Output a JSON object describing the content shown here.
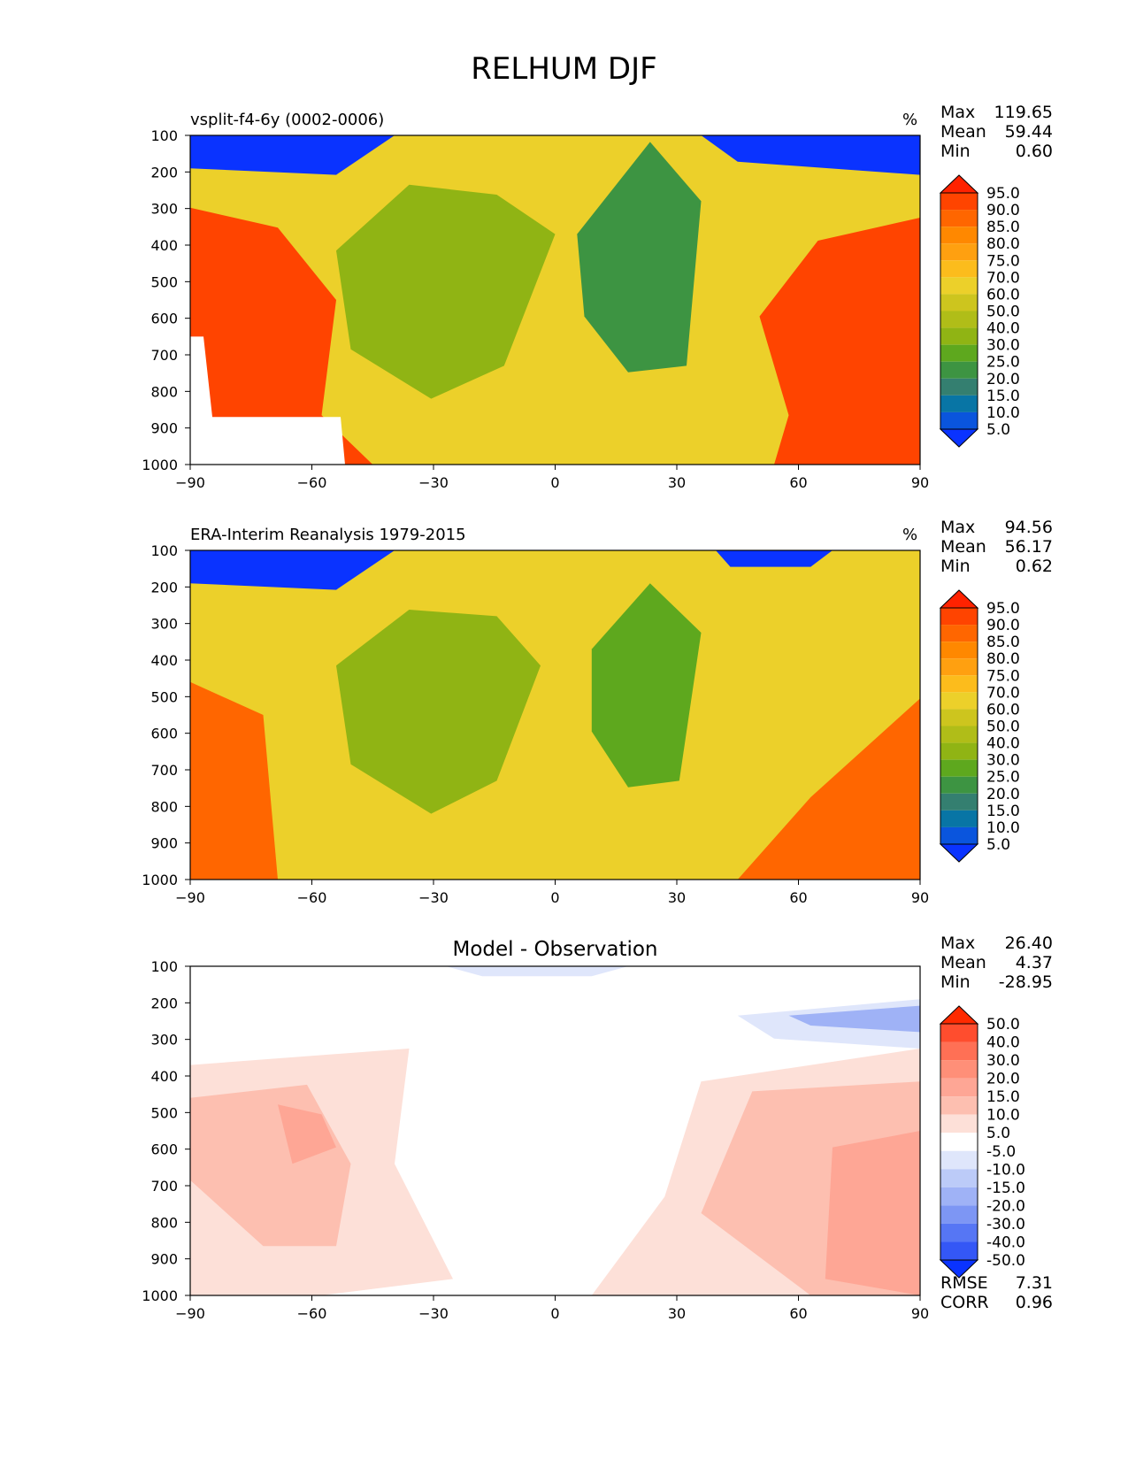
{
  "figure": {
    "title": "RELHUM DJF"
  },
  "chart_data": [
    {
      "type": "contour",
      "title": "vsplit-f4-6y (0002-0006)",
      "units": "%",
      "stats": [
        {
          "label": "Max",
          "value": "119.65"
        },
        {
          "label": "Mean",
          "value": "59.44"
        },
        {
          "label": "Min",
          "value": "0.60"
        }
      ],
      "x_ticks": [
        "−90",
        "−60",
        "−30",
        "0",
        "30",
        "60",
        "90"
      ],
      "y_ticks": [
        "100",
        "200",
        "300",
        "400",
        "500",
        "600",
        "700",
        "800",
        "900",
        "1000"
      ],
      "xlim": [
        -90,
        90
      ],
      "ylim": [
        1000,
        100
      ],
      "colorbar": {
        "labels": [
          "95.0",
          "90.0",
          "85.0",
          "80.0",
          "75.0",
          "70.0",
          "60.0",
          "50.0",
          "40.0",
          "30.0",
          "25.0",
          "20.0",
          "15.0",
          "10.0",
          "5.0"
        ],
        "colors": [
          "#ff2200",
          "#ff4400",
          "#ff6600",
          "#ff8800",
          "#ffa010",
          "#fcbc1c",
          "#ecd02a",
          "#cdc51e",
          "#b0bd18",
          "#90b414",
          "#5ea81e",
          "#3d9442",
          "#347f70",
          "#0875a5",
          "#0a55dd",
          "#0a33ff"
        ]
      },
      "fields": {
        "stratosphere_dry": {
          "value": 5,
          "color": "#0a33ff"
        },
        "tropics_upper": {
          "value": 70,
          "color": "#ecd02a"
        },
        "subtropics_south": {
          "value": 40,
          "color": "#90b414"
        },
        "subtropics_north": {
          "value": 25,
          "color": "#3d9442"
        },
        "polar_lower": {
          "value": 90,
          "color": "#ff4400"
        }
      }
    },
    {
      "type": "contour",
      "title": "ERA-Interim Reanalysis 1979-2015",
      "units": "%",
      "stats": [
        {
          "label": "Max",
          "value": "94.56"
        },
        {
          "label": "Mean",
          "value": "56.17"
        },
        {
          "label": "Min",
          "value": "0.62"
        }
      ],
      "x_ticks": [
        "−90",
        "−60",
        "−30",
        "0",
        "30",
        "60",
        "90"
      ],
      "y_ticks": [
        "100",
        "200",
        "300",
        "400",
        "500",
        "600",
        "700",
        "800",
        "900",
        "1000"
      ],
      "xlim": [
        -90,
        90
      ],
      "ylim": [
        1000,
        100
      ],
      "colorbar": {
        "labels": [
          "95.0",
          "90.0",
          "85.0",
          "80.0",
          "75.0",
          "70.0",
          "60.0",
          "50.0",
          "40.0",
          "30.0",
          "25.0",
          "20.0",
          "15.0",
          "10.0",
          "5.0"
        ],
        "colors": [
          "#ff2200",
          "#ff4400",
          "#ff6600",
          "#ff8800",
          "#ffa010",
          "#fcbc1c",
          "#ecd02a",
          "#cdc51e",
          "#b0bd18",
          "#90b414",
          "#5ea81e",
          "#3d9442",
          "#347f70",
          "#0875a5",
          "#0a55dd",
          "#0a33ff"
        ]
      },
      "fields": {
        "stratosphere_dry": {
          "value": 5,
          "color": "#0a33ff"
        },
        "tropics_upper": {
          "value": 70,
          "color": "#ecd02a"
        },
        "subtropics_south": {
          "value": 40,
          "color": "#90b414"
        },
        "subtropics_north": {
          "value": 30,
          "color": "#5ea81e"
        },
        "polar_lower": {
          "value": 85,
          "color": "#ff6600"
        }
      }
    },
    {
      "type": "contour",
      "title": "Model - Observation",
      "units": "",
      "stats": [
        {
          "label": "Max",
          "value": "26.40"
        },
        {
          "label": "Mean",
          "value": "4.37"
        },
        {
          "label": "Min",
          "value": "-28.95"
        }
      ],
      "extra_stats": [
        {
          "label": "RMSE",
          "value": "7.31"
        },
        {
          "label": "CORR",
          "value": "0.96"
        }
      ],
      "x_ticks": [
        "−90",
        "−60",
        "−30",
        "0",
        "30",
        "60",
        "90"
      ],
      "y_ticks": [
        "100",
        "200",
        "300",
        "400",
        "500",
        "600",
        "700",
        "800",
        "900",
        "1000"
      ],
      "xlim": [
        -90,
        90
      ],
      "ylim": [
        1000,
        100
      ],
      "colorbar": {
        "labels": [
          "50.0",
          "40.0",
          "30.0",
          "20.0",
          "15.0",
          "10.0",
          "5.0",
          "-5.0",
          "-10.0",
          "-15.0",
          "-20.0",
          "-30.0",
          "-40.0",
          "-50.0"
        ],
        "colors": [
          "#ff2a00",
          "#ff4d2e",
          "#ff7055",
          "#ff8f78",
          "#fea695",
          "#fdbfb0",
          "#fde0d8",
          "#ffffff",
          "#dfe6fb",
          "#bccbf8",
          "#9fb2f6",
          "#7d96f4",
          "#5676f4",
          "#3457f6",
          "#0a33ff"
        ]
      },
      "fields": {
        "background": {
          "value": 0,
          "color": "#ffffff"
        },
        "positive_weak": {
          "value": 5,
          "color": "#fde0d8"
        },
        "positive_mid": {
          "value": 10,
          "color": "#fdbfb0"
        },
        "positive_strong": {
          "value": 20,
          "color": "#fea695"
        },
        "negative_weak": {
          "value": -5,
          "color": "#dfe6fb"
        },
        "negative_mid": {
          "value": -15,
          "color": "#9fb2f6"
        }
      }
    }
  ]
}
